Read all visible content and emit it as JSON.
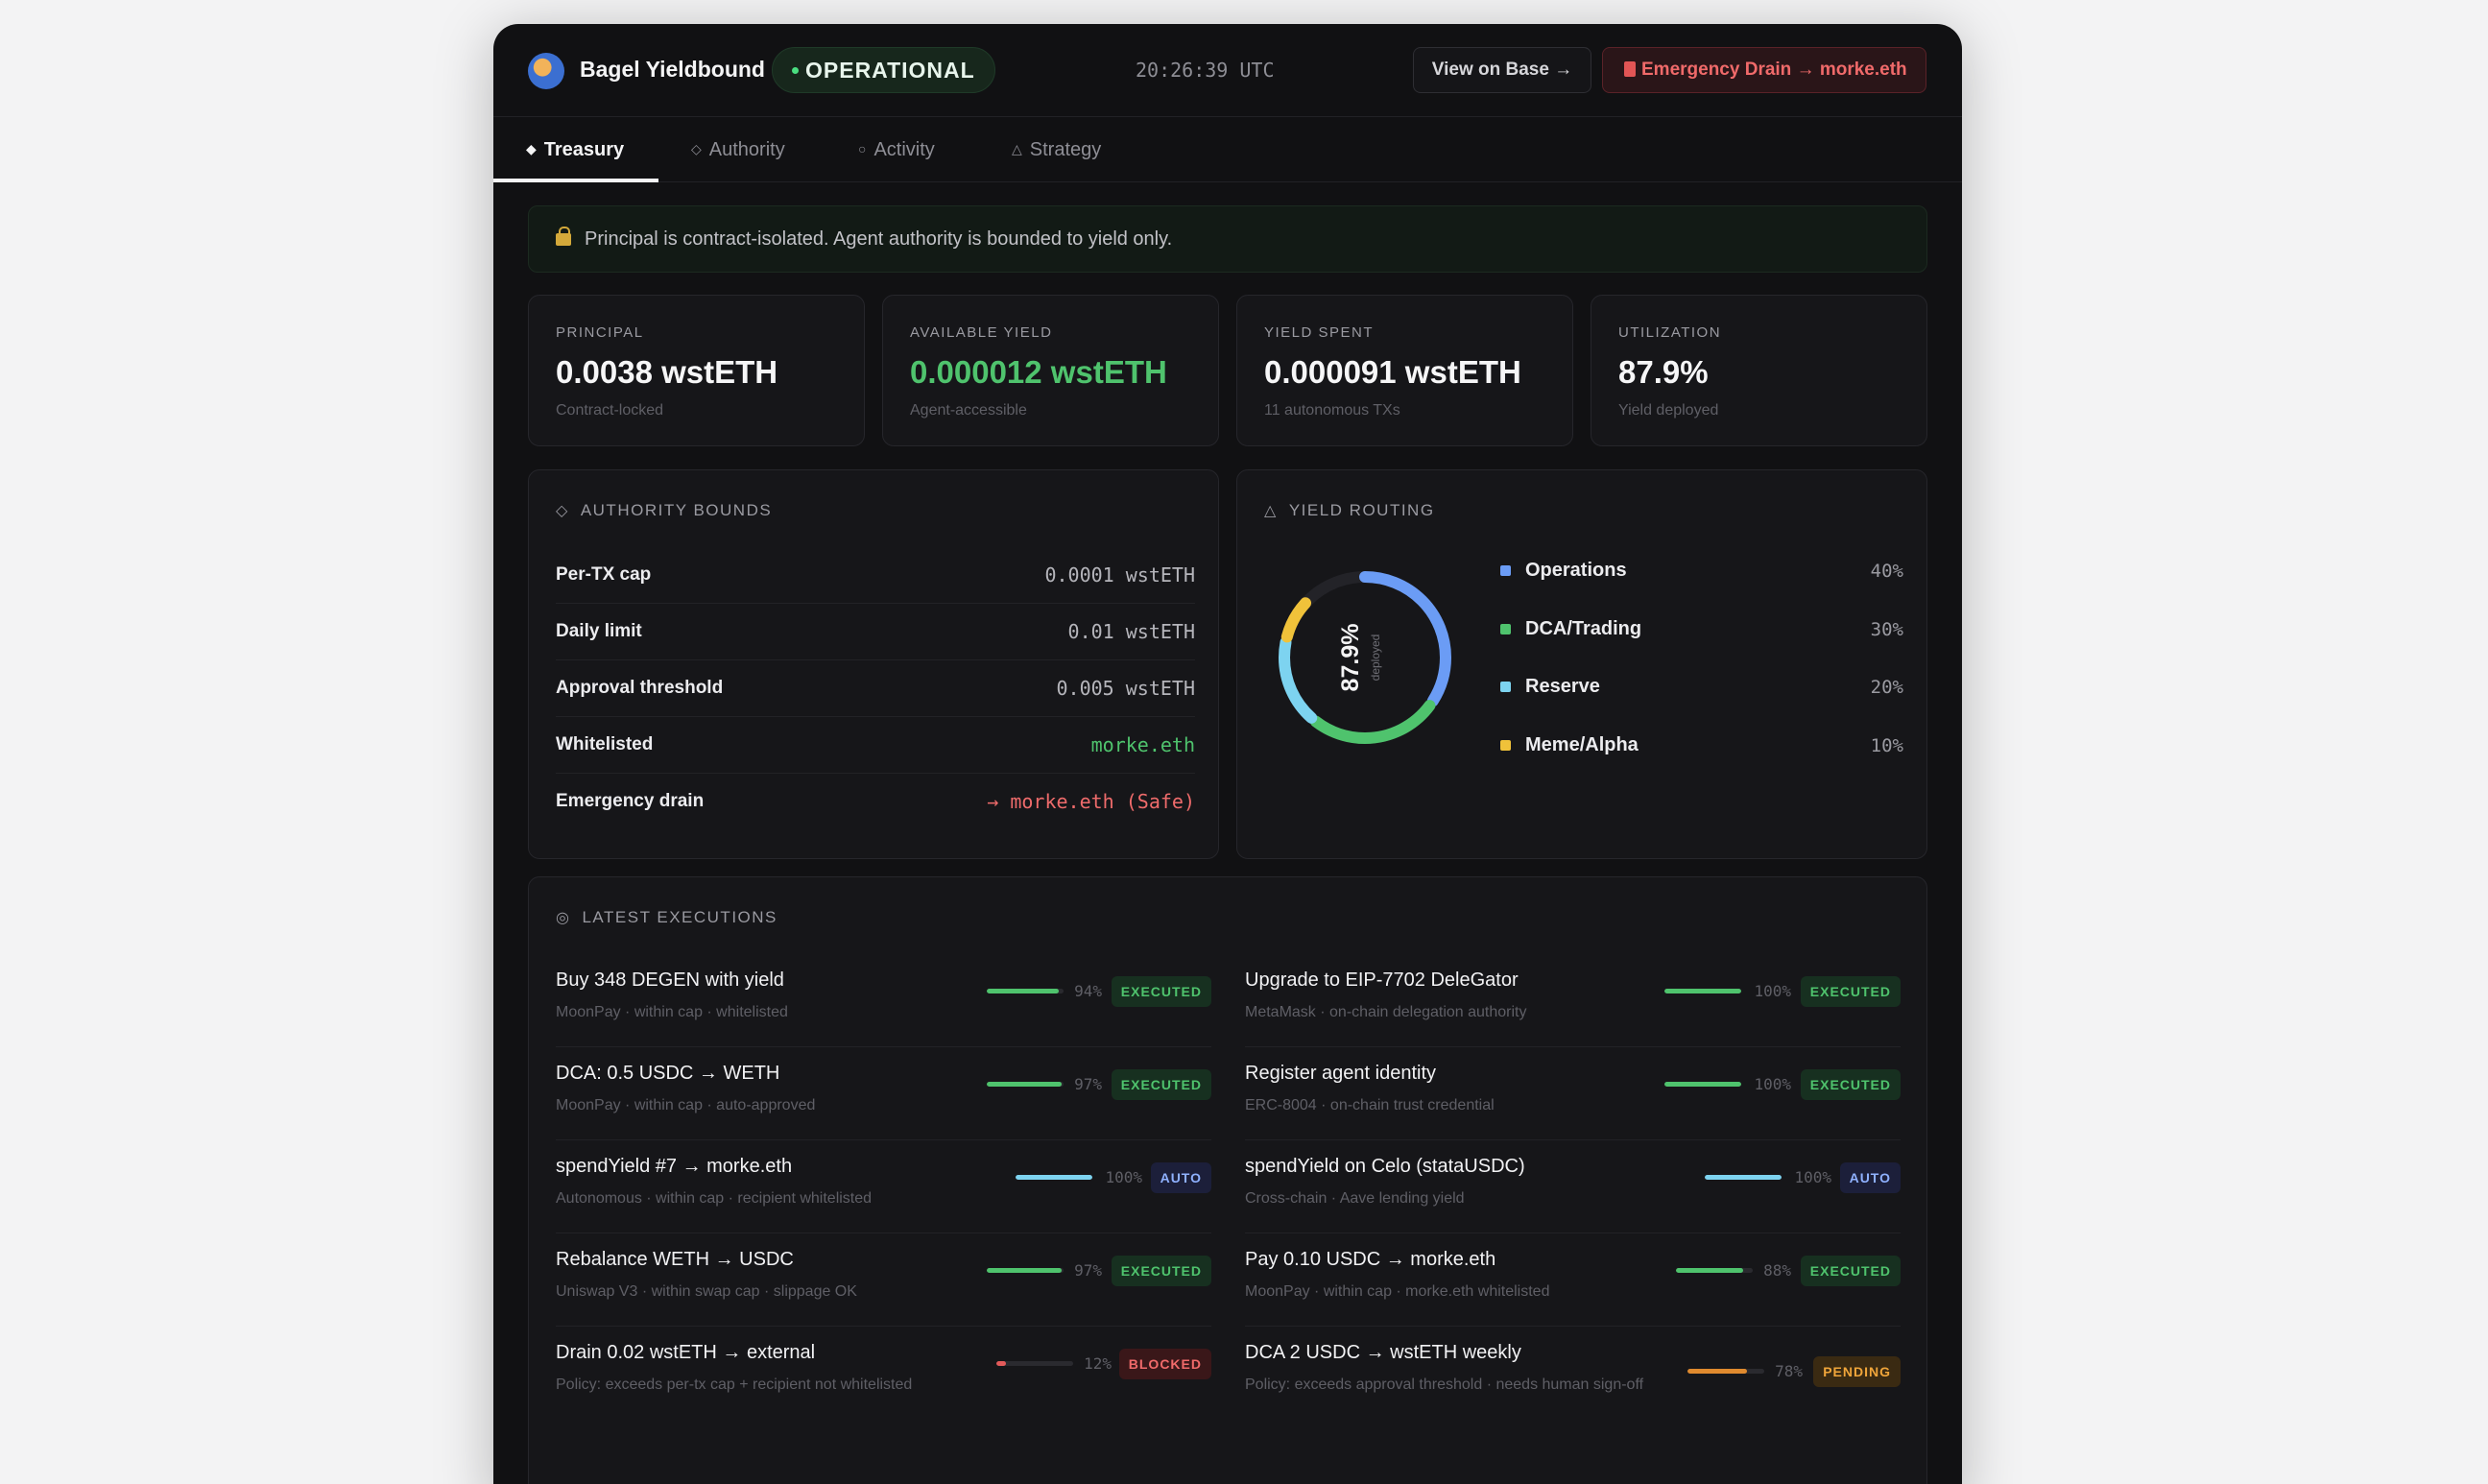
{
  "header": {
    "app_title": "Bagel Yieldbound",
    "status": "OPERATIONAL",
    "clock": "20:26:39 UTC",
    "view_button": "View on Base →",
    "drain_button": "Emergency Drain → morke.eth"
  },
  "tabs": [
    {
      "label": "Treasury",
      "icon": "diamond-filled-icon",
      "active": true
    },
    {
      "label": "Authority",
      "icon": "diamond-outline-icon"
    },
    {
      "label": "Activity",
      "icon": "circle-icon"
    },
    {
      "label": "Strategy",
      "icon": "triangle-icon"
    }
  ],
  "notice": "Principal is contract-isolated. Agent authority is bounded to yield only.",
  "stats": [
    {
      "label": "PRINCIPAL",
      "value": "0.0038 wstETH",
      "sub": "Contract-locked"
    },
    {
      "label": "AVAILABLE YIELD",
      "value": "0.000012 wstETH",
      "sub": "Agent-accessible"
    },
    {
      "label": "YIELD SPENT",
      "value": "0.000091 wstETH",
      "sub": "11 autonomous TXs"
    },
    {
      "label": "UTILIZATION",
      "value": "87.9%",
      "sub": "Yield deployed"
    }
  ],
  "authority": {
    "title": "AUTHORITY BOUNDS",
    "rows": [
      {
        "label": "Per-TX cap",
        "value": "0.0001 wstETH"
      },
      {
        "label": "Daily limit",
        "value": "0.01 wstETH"
      },
      {
        "label": "Approval threshold",
        "value": "0.005 wstETH"
      },
      {
        "label": "Whitelisted",
        "value": "morke.eth"
      },
      {
        "label": "Emergency drain",
        "value": "→ morke.eth (Safe)"
      }
    ]
  },
  "routing": {
    "title": "YIELD ROUTING",
    "center_value": "87.9%",
    "center_label": "deployed",
    "rows": [
      {
        "name": "Operations",
        "pct": "40%",
        "value": 40,
        "color": "#6b9cf5"
      },
      {
        "name": "DCA/Trading",
        "pct": "30%",
        "value": 30,
        "color": "#4fc36d"
      },
      {
        "name": "Reserve",
        "pct": "20%",
        "value": 20,
        "color": "#7dd3f0"
      },
      {
        "name": "Meme/Alpha",
        "pct": "10%",
        "value": 10,
        "color": "#f0c23a"
      }
    ]
  },
  "executions": {
    "title": "LATEST EXECUTIONS",
    "left": [
      {
        "title": "Buy 348 DEGEN with yield",
        "desc": "MoonPay · within cap · whitelisted",
        "progress": 94,
        "pct": "94%",
        "badge": "EXECUTED",
        "kind": "exec"
      },
      {
        "title": "DCA: 0.5 USDC → WETH",
        "desc": "MoonPay · within cap · auto-approved",
        "progress": 97,
        "pct": "97%",
        "badge": "EXECUTED",
        "kind": "exec"
      },
      {
        "title": "spendYield #7 → morke.eth",
        "desc": "Autonomous · within cap · recipient whitelisted",
        "progress": 100,
        "pct": "100%",
        "badge": "AUTO",
        "kind": "auto"
      },
      {
        "title": "Rebalance WETH → USDC",
        "desc": "Uniswap V3 · within swap cap · slippage OK",
        "progress": 97,
        "pct": "97%",
        "badge": "EXECUTED",
        "kind": "exec"
      },
      {
        "title": "Drain 0.02 wstETH → external",
        "desc": "Policy: exceeds per-tx cap + recipient not whitelisted",
        "progress": 12,
        "pct": "12%",
        "badge": "BLOCKED",
        "kind": "block"
      }
    ],
    "right": [
      {
        "title": "Upgrade to EIP-7702 DeleGator",
        "desc": "MetaMask · on-chain delegation authority",
        "progress": 100,
        "pct": "100%",
        "badge": "EXECUTED",
        "kind": "exec"
      },
      {
        "title": "Register agent identity",
        "desc": "ERC-8004 · on-chain trust credential",
        "progress": 100,
        "pct": "100%",
        "badge": "EXECUTED",
        "kind": "exec"
      },
      {
        "title": "spendYield on Celo (stataUSDC)",
        "desc": "Cross-chain · Aave lending yield",
        "progress": 100,
        "pct": "100%",
        "badge": "AUTO",
        "kind": "auto"
      },
      {
        "title": "Pay 0.10 USDC → morke.eth",
        "desc": "MoonPay · within cap · morke.eth whitelisted",
        "progress": 88,
        "pct": "88%",
        "badge": "EXECUTED",
        "kind": "exec"
      },
      {
        "title": "DCA 2 USDC → wstETH weekly",
        "desc": "Policy: exceeds approval threshold · needs human sign-off",
        "progress": 78,
        "pct": "78%",
        "badge": "PENDING",
        "kind": "pend"
      }
    ]
  }
}
